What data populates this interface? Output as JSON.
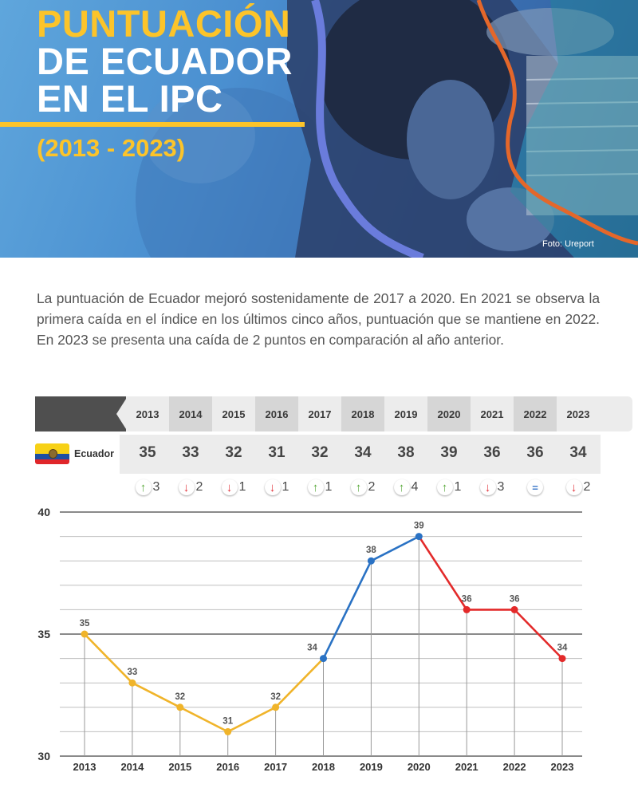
{
  "hero": {
    "title_line1": "PUNTUACIÓN",
    "title_line2": "DE ECUADOR",
    "title_line3": "EN EL IPC",
    "years": "(2013 - 2023)",
    "photo_credit": "Foto: Ureport"
  },
  "intro": "La puntuación de Ecuador mejoró sostenidamente de 2017 a 2020. En 2021 se observa la primera caída en el índice en los últimos cinco años, puntuación que se mantiene en 2022. En 2023 se presenta una caída de 2 puntos en comparación al año anterior.",
  "table": {
    "country": "Ecuador",
    "years": [
      "2013",
      "2014",
      "2015",
      "2016",
      "2017",
      "2018",
      "2019",
      "2020",
      "2021",
      "2022",
      "2023"
    ],
    "scores": [
      "35",
      "33",
      "32",
      "31",
      "32",
      "34",
      "38",
      "39",
      "36",
      "36",
      "34"
    ],
    "changes": [
      {
        "dir": "up",
        "glyph": "↑",
        "value": "3"
      },
      {
        "dir": "down",
        "glyph": "↓",
        "value": "2"
      },
      {
        "dir": "down",
        "glyph": "↓",
        "value": "1"
      },
      {
        "dir": "down",
        "glyph": "↓",
        "value": "1"
      },
      {
        "dir": "up",
        "glyph": "↑",
        "value": "1"
      },
      {
        "dir": "up",
        "glyph": "↑",
        "value": "2"
      },
      {
        "dir": "up",
        "glyph": "↑",
        "value": "4"
      },
      {
        "dir": "up",
        "glyph": "↑",
        "value": "1"
      },
      {
        "dir": "down",
        "glyph": "↓",
        "value": "3"
      },
      {
        "dir": "eq",
        "glyph": "=",
        "value": ""
      },
      {
        "dir": "down",
        "glyph": "↓",
        "value": "2"
      }
    ]
  },
  "colors": {
    "title_yellow": "#fcc42a",
    "up_green": "#5aaa3c",
    "down_red": "#e2343c",
    "equal_blue": "#3c78c8",
    "line_yellow": "#f0b42a",
    "line_blue": "#2a72c4",
    "line_red": "#e32a2a"
  },
  "chart_data": {
    "type": "line",
    "x": [
      "2013",
      "2014",
      "2015",
      "2016",
      "2017",
      "2018",
      "2019",
      "2020",
      "2021",
      "2022",
      "2023"
    ],
    "values": [
      35,
      33,
      32,
      31,
      32,
      34,
      38,
      39,
      36,
      36,
      34
    ],
    "segment_colors": [
      "#f0b42a",
      "#f0b42a",
      "#f0b42a",
      "#f0b42a",
      "#f0b42a",
      "#2a72c4",
      "#2a72c4",
      "#e32a2a",
      "#e32a2a",
      "#e32a2a"
    ],
    "point_colors": [
      "#f0b42a",
      "#f0b42a",
      "#f0b42a",
      "#f0b42a",
      "#f0b42a",
      "#2a72c4",
      "#2a72c4",
      "#2a72c4",
      "#e32a2a",
      "#e32a2a",
      "#e32a2a"
    ],
    "yticks": [
      "30",
      "35",
      "40"
    ],
    "ylim": [
      30,
      40
    ],
    "grid": true,
    "title": "",
    "xlabel": "",
    "ylabel": ""
  }
}
